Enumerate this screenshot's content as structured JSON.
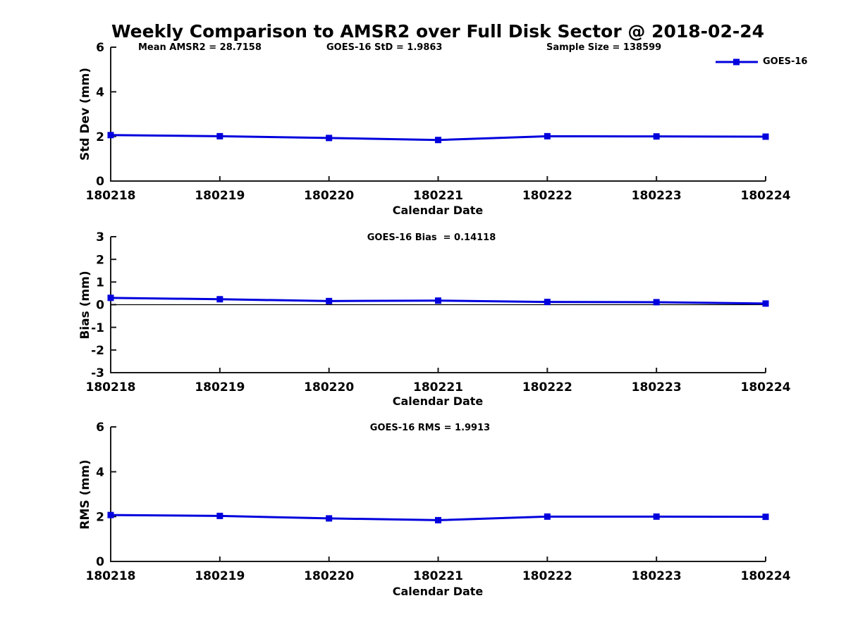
{
  "title": "Weekly Comparison to AMSR2 over Full Disk Sector @ 2018-02-24",
  "legend": {
    "label": "GOES-16"
  },
  "colors": {
    "line": "#0000dd",
    "axis": "#1a1a1a",
    "zero_line": "#000000",
    "text": "#000000",
    "background": "#ffffff"
  },
  "chart_data": [
    {
      "type": "line",
      "name": "std-dev",
      "annotations": [
        "Mean AMSR2 = 28.7158",
        "GOES-16 StD = 1.9863",
        "Sample Size = 138599"
      ],
      "ylabel": "Std Dev (mm)",
      "xlabel": "Calendar Date",
      "categories": [
        "180218",
        "180219",
        "180220",
        "180221",
        "180222",
        "180223",
        "180224"
      ],
      "series": [
        {
          "name": "GOES-16",
          "values": [
            2.06,
            2.01,
            1.93,
            1.84,
            2.01,
            2.0,
            1.99
          ]
        }
      ],
      "ylim": [
        0,
        6
      ],
      "yticks": [
        0,
        2,
        4,
        6
      ],
      "zero_line": false,
      "legend_position": "top-right",
      "grid": false
    },
    {
      "type": "line",
      "name": "bias",
      "annotations": [
        "GOES-16 Bias  = 0.14118"
      ],
      "ylabel": "Bias (mm)",
      "xlabel": "Calendar Date",
      "categories": [
        "180218",
        "180219",
        "180220",
        "180221",
        "180222",
        "180223",
        "180224"
      ],
      "series": [
        {
          "name": "GOES-16",
          "values": [
            0.3,
            0.24,
            0.16,
            0.18,
            0.12,
            0.11,
            0.05
          ]
        }
      ],
      "ylim": [
        -3,
        3
      ],
      "yticks": [
        -3,
        -2,
        -1,
        0,
        1,
        2,
        3
      ],
      "zero_line": true,
      "grid": false
    },
    {
      "type": "line",
      "name": "rms",
      "annotations": [
        "GOES-16 RMS = 1.9913"
      ],
      "ylabel": "RMS (mm)",
      "xlabel": "Calendar Date",
      "categories": [
        "180218",
        "180219",
        "180220",
        "180221",
        "180222",
        "180223",
        "180224"
      ],
      "series": [
        {
          "name": "GOES-16",
          "values": [
            2.07,
            2.03,
            1.92,
            1.84,
            2.0,
            2.0,
            1.99
          ]
        }
      ],
      "ylim": [
        0,
        6
      ],
      "yticks": [
        0,
        2,
        4,
        6
      ],
      "zero_line": false,
      "grid": false
    }
  ]
}
